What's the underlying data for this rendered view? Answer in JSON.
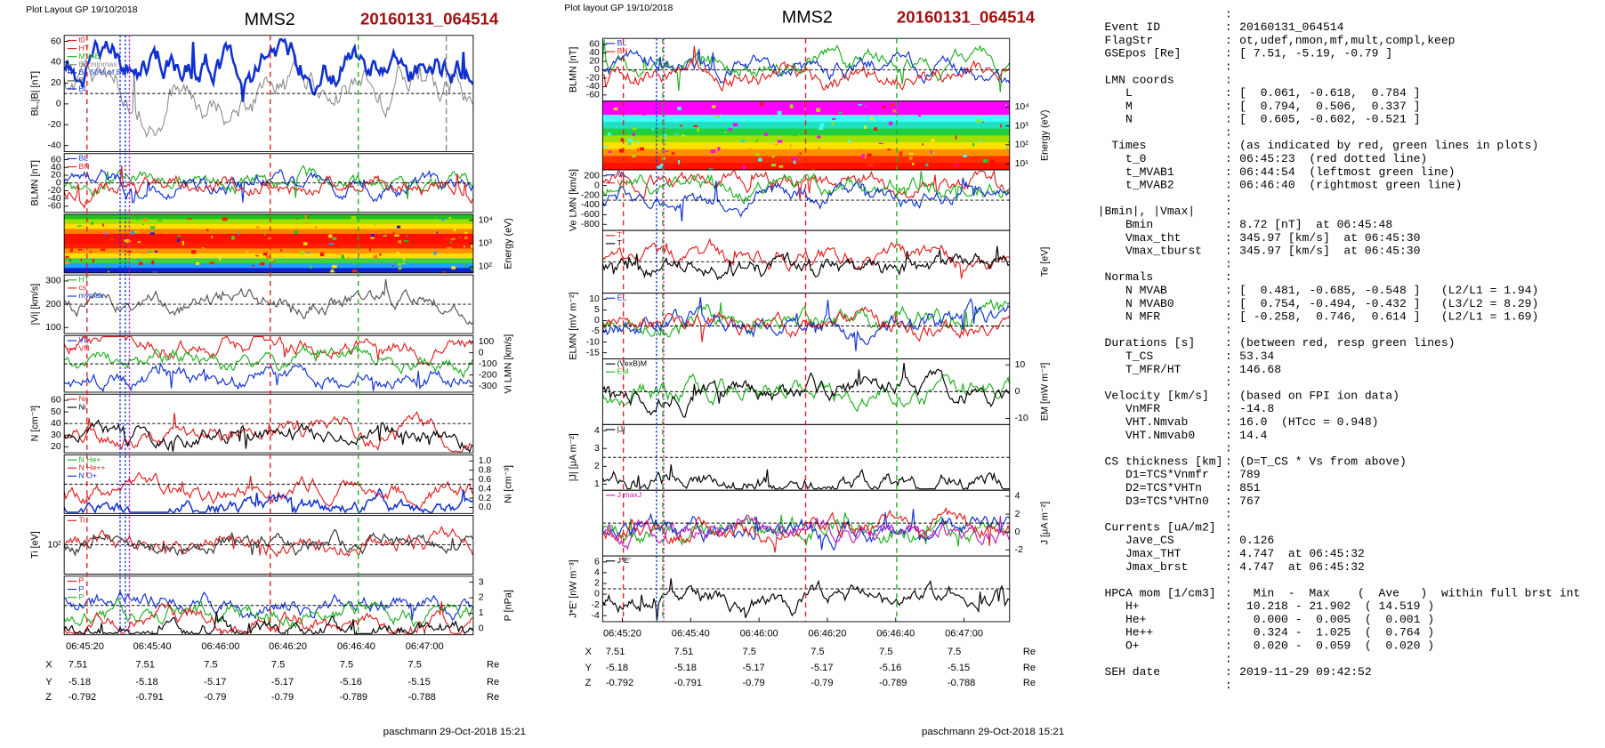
{
  "left_plot": {
    "header": "Plot Layout GP 19/10/2018",
    "spacecraft": "MMS2",
    "event": "20160131_064514",
    "panels": [
      {
        "ylabel": "BL,|B| [nT]",
        "axis_side": "left",
        "yticks": [
          "60",
          "40",
          "20",
          "0",
          "-20",
          "-40"
        ],
        "legend": [
          {
            "name": "t0",
            "color": "#e02020"
          },
          {
            "name": "HT",
            "color": "#e02020"
          },
          {
            "name": "MVAB",
            "color": "#20b020"
          },
          {
            "name": "BL minmax",
            "color": "#888888"
          },
          {
            "name": "BL 50% of BL",
            "color": "#1030d0"
          },
          {
            "name": "B",
            "color": "#555555"
          },
          {
            "name": "BL",
            "color": "#1030d0"
          }
        ]
      },
      {
        "ylabel": "BLMN [nT]",
        "axis_side": "left",
        "yticks": [
          "60",
          "40",
          "20",
          "0",
          "-20",
          "-40",
          "-60"
        ],
        "legend": [
          {
            "name": "BL",
            "color": "#1030d0"
          },
          {
            "name": "BN",
            "color": "#e02020"
          }
        ]
      },
      {
        "ylabel": "Energy (eV)",
        "axis_side": "right",
        "yticks": [
          "10⁴",
          "10³",
          "10²"
        ],
        "legend": []
      },
      {
        "ylabel": "|Vi| [km/s]",
        "axis_side": "left",
        "yticks": [
          "300",
          "200",
          "100"
        ],
        "legend": [
          {
            "name": "HT",
            "color": "#20b020"
          },
          {
            "name": "cs",
            "color": "#e02020"
          },
          {
            "name": "mymax",
            "color": "#1030d0"
          }
        ]
      },
      {
        "ylabel": "Vi LMN [km/s]",
        "axis_side": "right",
        "yticks": [
          "100",
          "0",
          "-100",
          "-200",
          "-300"
        ],
        "legend": [
          {
            "name": "VL",
            "color": "#1030d0"
          },
          {
            "name": "VN",
            "color": "#e02020"
          }
        ]
      },
      {
        "ylabel": "N [cm⁻³]",
        "axis_side": "left",
        "yticks": [
          "60",
          "50",
          "40",
          "30",
          "20"
        ],
        "legend": [
          {
            "name": "Ne",
            "color": "#e02020"
          },
          {
            "name": "Ni",
            "color": "#000000"
          }
        ]
      },
      {
        "ylabel": "Ni [cm⁻³]",
        "axis_side": "right",
        "yticks": [
          "1.0",
          "0.8",
          "0.6",
          "0.4",
          "0.2",
          "0.0"
        ],
        "legend": [
          {
            "name": "N He+",
            "color": "#20b020"
          },
          {
            "name": "N He++",
            "color": "#e02020"
          },
          {
            "name": "N O+",
            "color": "#1030d0"
          }
        ]
      },
      {
        "ylabel": "Ti [eV]",
        "axis_side": "left",
        "yticks": [
          "10²"
        ],
        "legend": [
          {
            "name": "Ti",
            "color": "#e02020"
          }
        ]
      },
      {
        "ylabel": "P [nPa]",
        "axis_side": "right",
        "yticks": [
          "3",
          "2",
          "1",
          "0"
        ],
        "legend": [
          {
            "name": "P",
            "color": "#e02020"
          },
          {
            "name": "P",
            "color": "#1030d0"
          },
          {
            "name": "P",
            "color": "#20b020"
          }
        ]
      }
    ],
    "xticks": [
      "06:45:20",
      "06:45:40",
      "06:46:00",
      "06:46:20",
      "06:46:40",
      "06:47:00"
    ],
    "positions": [
      {
        "label": "X",
        "values": [
          "7.51",
          "7.51",
          "7.5",
          "7.5",
          "7.5",
          "7.5"
        ],
        "unit": "Re"
      },
      {
        "label": "Y",
        "values": [
          "-5.18",
          "-5.18",
          "-5.17",
          "-5.17",
          "-5.16",
          "-5.15"
        ],
        "unit": "Re"
      },
      {
        "label": "Z",
        "values": [
          "-0.792",
          "-0.791",
          "-0.79",
          "-0.79",
          "-0.789",
          "-0.788"
        ],
        "unit": "Re"
      }
    ],
    "footer": "paschmann 29-Oct-2018 15:21"
  },
  "right_plot": {
    "header": "Plot layout GP 19/10/2018",
    "spacecraft": "MMS2",
    "event": "20160131_064514",
    "panels": [
      {
        "ylabel": "BLMN [nT]",
        "axis_side": "left",
        "yticks": [
          "60",
          "40",
          "20",
          "0",
          "-20",
          "-40",
          "-60"
        ],
        "legend": [
          {
            "name": "BL",
            "color": "#1030d0"
          },
          {
            "name": "BN",
            "color": "#e02020"
          }
        ]
      },
      {
        "ylabel": "Energy (eV)",
        "axis_side": "right",
        "yticks": [
          "10⁴",
          "10³",
          "10²",
          "10¹"
        ],
        "legend": []
      },
      {
        "ylabel": "Ve LMN [km/s]",
        "axis_side": "left",
        "yticks": [
          "200",
          "0",
          "-200",
          "-400",
          "-600",
          "-800"
        ],
        "legend": [
          {
            "name": "VL",
            "color": "#1030d0"
          },
          {
            "name": "VN",
            "color": "#e02020"
          }
        ]
      },
      {
        "ylabel": "Te [eV]",
        "axis_side": "right",
        "yticks": [],
        "legend": [
          {
            "name": "T",
            "color": "#e02020"
          },
          {
            "name": "T",
            "color": "#000000"
          }
        ]
      },
      {
        "ylabel": "ELMN [mV m⁻²]",
        "axis_side": "left",
        "yticks": [
          "10",
          "5",
          "0",
          "-5",
          "-10",
          "-15"
        ],
        "legend": [
          {
            "name": "EL",
            "color": "#1030d0"
          }
        ]
      },
      {
        "ylabel": "EM [mW m⁻²]",
        "axis_side": "right",
        "yticks": [
          "10",
          "0",
          "-10"
        ],
        "legend": [
          {
            "name": "(VexB)M",
            "color": "#000000"
          },
          {
            "name": "EM",
            "color": "#20b020"
          }
        ]
      },
      {
        "ylabel": "|J| [μA m⁻²]",
        "axis_side": "left",
        "yticks": [
          "4",
          "3",
          "2",
          "1"
        ],
        "legend": [
          {
            "name": "|J|",
            "color": "#000000"
          }
        ]
      },
      {
        "ylabel": "J [μA m⁻²]",
        "axis_side": "right",
        "yticks": [
          "4",
          "2",
          "0",
          "-2"
        ],
        "legend": [
          {
            "name": "J maxJ",
            "color": "#c020c0"
          }
        ]
      },
      {
        "ylabel": "J*E' [nW m⁻³]",
        "axis_side": "left",
        "yticks": [
          "6",
          "4",
          "2",
          "0",
          "-2",
          "-4"
        ],
        "legend": [
          {
            "name": "J*E'",
            "color": "#000000"
          }
        ]
      }
    ],
    "xticks": [
      "06:45:20",
      "06:45:40",
      "06:46:00",
      "06:46:20",
      "06:46:40",
      "06:47:00"
    ],
    "positions": [
      {
        "label": "X",
        "values": [
          "7.51",
          "7.51",
          "7.5",
          "7.5",
          "7.5",
          "7.5"
        ],
        "unit": "Re"
      },
      {
        "label": "Y",
        "values": [
          "-5.18",
          "-5.18",
          "-5.17",
          "-5.17",
          "-5.16",
          "-5.15"
        ],
        "unit": "Re"
      },
      {
        "label": "Z",
        "values": [
          "-0.792",
          "-0.791",
          "-0.79",
          "-0.79",
          "-0.789",
          "-0.788"
        ],
        "unit": "Re"
      }
    ],
    "footer": "paschmann 29-Oct-2018 15:21"
  },
  "info": {
    "lines": [
      null,
      {
        "key": " Event ID",
        "value": "20160131_064514"
      },
      {
        "key": " FlagStr",
        "value": "ot,udef,nmon,mf,mult,compl,keep"
      },
      {
        "key": " GSEpos [Re]",
        "value": "[ 7.51, -5.19, -0.79 ]"
      },
      null,
      {
        "key": " LMN coords",
        "value": null
      },
      {
        "key": "    L",
        "value": "[  0.061, -0.618,  0.784 ]"
      },
      {
        "key": "    M",
        "value": "[  0.794,  0.506,  0.337 ]"
      },
      {
        "key": "    N",
        "value": "[  0.605, -0.602, -0.521 ]"
      },
      null,
      {
        "key": "  Times",
        "value": "(as indicated by red, green lines in plots)"
      },
      {
        "key": "    t_0",
        "value": "06:45:23  (red dotted line)"
      },
      {
        "key": "    t_MVAB1",
        "value": "06:44:54  (leftmost green line)"
      },
      {
        "key": "    t_MVAB2",
        "value": "06:46:40  (rightmost green line)"
      },
      null,
      {
        "key": "|Bmin|, |Vmax|",
        "value": null
      },
      {
        "key": "    Bmin",
        "value": "8.72 [nT]  at 06:45:48"
      },
      {
        "key": "    Vmax_tht",
        "value": "345.97 [km/s]  at 06:45:30"
      },
      {
        "key": "    Vmax_tburst",
        "value": "345.97 [km/s]  at 06:45:30"
      },
      null,
      {
        "key": " Normals",
        "value": null
      },
      {
        "key": "    N MVAB",
        "value": "[  0.481, -0.685, -0.548 ]   (L2/L1 = 1.94)"
      },
      {
        "key": "    N MVAB0",
        "value": "[  0.754, -0.494, -0.432 ]   (L3/L2 = 8.29)"
      },
      {
        "key": "    N MFR",
        "value": "[ -0.258,  0.746,  0.614 ]   (L2/L1 = 1.69)"
      },
      null,
      {
        "key": " Durations [s]",
        "value": "(between red, resp green lines)"
      },
      {
        "key": "    T_CS",
        "value": "53.34"
      },
      {
        "key": "    T_MFR/HT",
        "value": "146.68"
      },
      null,
      {
        "key": " Velocity [km/s]",
        "value": "(based on FPI ion data)"
      },
      {
        "key": "    VnMFR",
        "value": "-14.8"
      },
      {
        "key": "    VHT.Nmvab",
        "value": "16.0  (HTcc = 0.948)"
      },
      {
        "key": "    VHT.Nmvab0",
        "value": "14.4"
      },
      null,
      {
        "key": " CS thickness [km]",
        "value": "(D=T_CS * Vs from above)"
      },
      {
        "key": "    D1=TCS*Vnmfr",
        "value": "789"
      },
      {
        "key": "    D2=TCS*VHTn",
        "value": "851"
      },
      {
        "key": "    D3=TCS*VHTn0",
        "value": "767"
      },
      null,
      {
        "key": " Currents [uA/m2]",
        "value": null
      },
      {
        "key": "    Jave_CS",
        "value": "0.126"
      },
      {
        "key": "    Jmax_THT",
        "value": "4.747  at 06:45:32"
      },
      {
        "key": "    Jmax_brst",
        "value": "4.747  at 06:45:32"
      },
      null,
      {
        "key": " HPCA mom [1/cm3]",
        "value": "  Min  -  Max    (  Ave   )  within full brst int"
      },
      {
        "key": "    H+",
        "value": " 10.218 - 21.902  ( 14.519 )"
      },
      {
        "key": "    He+",
        "value": "  0.000 -  0.005  (  0.001 )"
      },
      {
        "key": "    He++",
        "value": "  0.324 -  1.025  (  0.764 )"
      },
      {
        "key": "    O+",
        "value": "  0.020 -  0.059  (  0.020 )"
      },
      null,
      {
        "key": " SEH date",
        "value": "2019-11-29 09:42:52"
      },
      null
    ]
  }
}
